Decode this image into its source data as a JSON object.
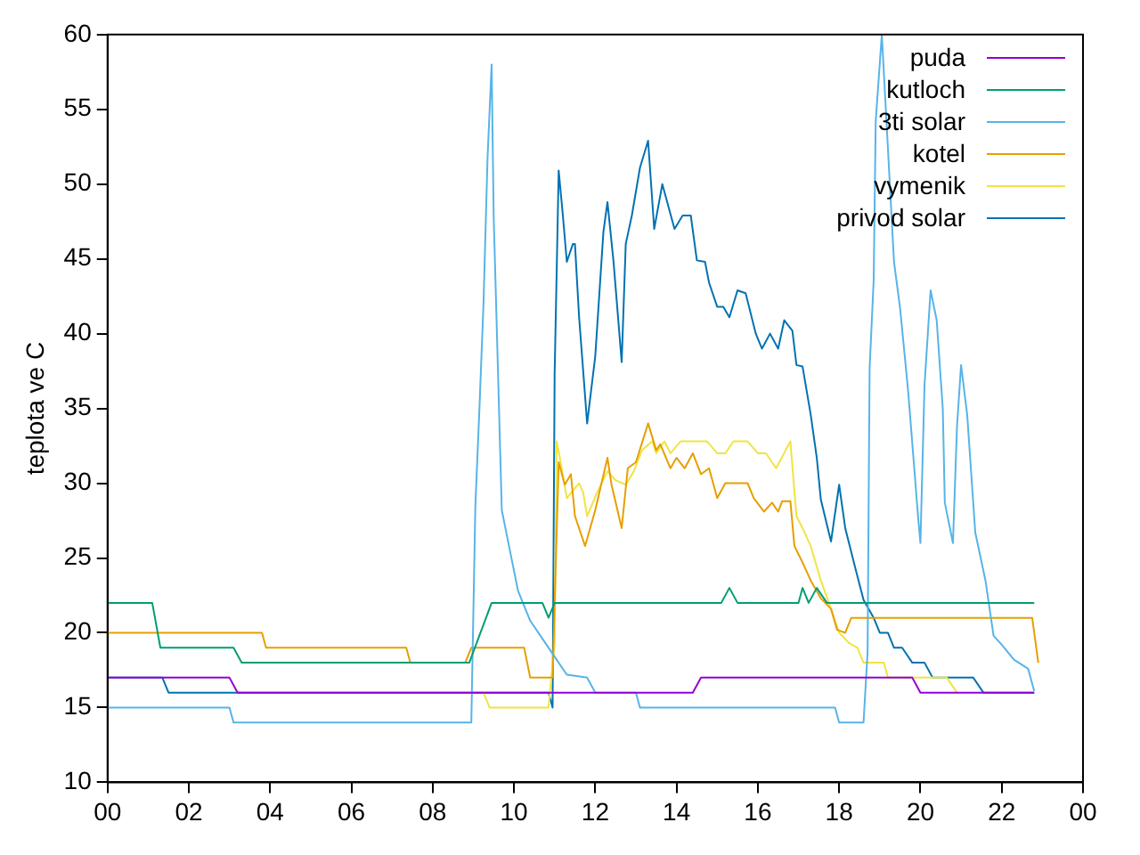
{
  "chart_data": {
    "type": "line",
    "ylabel": "teplota ve C",
    "xlim": [
      0,
      24
    ],
    "ylim": [
      10,
      60
    ],
    "xticks": [
      {
        "value": 0,
        "label": "00"
      },
      {
        "value": 2,
        "label": "02"
      },
      {
        "value": 4,
        "label": "04"
      },
      {
        "value": 6,
        "label": "06"
      },
      {
        "value": 8,
        "label": "08"
      },
      {
        "value": 10,
        "label": "10"
      },
      {
        "value": 12,
        "label": "12"
      },
      {
        "value": 14,
        "label": "14"
      },
      {
        "value": 16,
        "label": "16"
      },
      {
        "value": 18,
        "label": "18"
      },
      {
        "value": 20,
        "label": "20"
      },
      {
        "value": 22,
        "label": "22"
      },
      {
        "value": 24,
        "label": "00"
      }
    ],
    "yticks": [
      10,
      15,
      20,
      25,
      30,
      35,
      40,
      45,
      50,
      55,
      60
    ],
    "grid": false,
    "legend": "top right",
    "marker": "none",
    "line_style": "solid",
    "series": [
      {
        "name": "puda",
        "color": "#9400d3",
        "x": [
          0,
          3.0,
          3.2,
          11.0,
          14.4,
          14.6,
          19.8,
          20.0,
          22.8
        ],
        "values": [
          17,
          17,
          16,
          16,
          16,
          17,
          17,
          16,
          16
        ]
      },
      {
        "name": "kutloch",
        "color": "#009e73",
        "x": [
          0,
          1.1,
          1.3,
          3.1,
          3.3,
          8.9,
          9.45,
          10.7,
          10.85,
          11.0,
          15.1,
          15.3,
          15.5,
          17.0,
          17.1,
          17.25,
          17.45,
          17.7,
          22.8
        ],
        "values": [
          22,
          22,
          19,
          19,
          18,
          18,
          22,
          22,
          21,
          22,
          22,
          23,
          22,
          22,
          23,
          22,
          23,
          22,
          22
        ]
      },
      {
        "name": "3ti solar",
        "color": "#56b4e9",
        "x": [
          0,
          3.0,
          3.1,
          8.95,
          9.05,
          9.15,
          9.25,
          9.35,
          9.45,
          9.5,
          9.6,
          9.7,
          9.9,
          10.1,
          10.4,
          10.8,
          11.0,
          11.3,
          11.8,
          12.0,
          13.0,
          13.1,
          17.9,
          18.0,
          18.6,
          18.7,
          18.75,
          18.85,
          18.9,
          19.05,
          19.35,
          19.5,
          19.7,
          19.95,
          20.0,
          20.1,
          20.25,
          20.4,
          20.55,
          20.6,
          20.8,
          20.9,
          21.0,
          21.15,
          21.35,
          21.6,
          21.8,
          22.0,
          22.3,
          22.65,
          22.8
        ],
        "values": [
          15,
          15,
          14,
          14,
          28.5,
          35,
          42,
          51.8,
          58,
          47.9,
          38.1,
          28.2,
          25.5,
          22.8,
          20.8,
          19.2,
          18.4,
          17.2,
          17,
          16,
          16,
          15,
          15,
          14,
          14,
          18.7,
          37.7,
          43.6,
          54.2,
          60,
          44.8,
          41.7,
          36.1,
          27.5,
          26,
          36.5,
          42.9,
          40.9,
          35,
          28.7,
          26,
          33.8,
          37.9,
          34.6,
          26.7,
          23.5,
          19.8,
          19.2,
          18.2,
          17.6,
          16.1
        ]
      },
      {
        "name": "kotel",
        "color": "#e69f00",
        "x": [
          0,
          3.8,
          3.9,
          7.35,
          7.45,
          8.8,
          8.95,
          10.25,
          10.4,
          10.95,
          11.05,
          11.1,
          11.25,
          11.4,
          11.5,
          11.75,
          12.0,
          12.3,
          12.4,
          12.65,
          12.8,
          13.0,
          13.3,
          13.5,
          13.6,
          13.85,
          14.0,
          14.2,
          14.4,
          14.6,
          14.8,
          15.0,
          15.2,
          15.75,
          15.9,
          16.15,
          16.35,
          16.5,
          16.6,
          16.8,
          16.9,
          17.1,
          17.3,
          17.55,
          17.8,
          17.95,
          18.15,
          18.3,
          22.75,
          22.9
        ],
        "values": [
          20,
          20,
          19,
          19,
          18,
          18,
          19,
          19,
          17,
          17,
          26.7,
          31.4,
          29.9,
          30.6,
          27.8,
          25.8,
          28.2,
          31.7,
          29.9,
          27,
          31,
          31.4,
          34,
          32.2,
          32.6,
          31,
          31.7,
          31,
          32,
          30.6,
          31,
          29,
          30,
          30,
          29,
          28.1,
          28.7,
          28.1,
          28.8,
          28.8,
          25.8,
          24.7,
          23.5,
          22.3,
          21.6,
          20.2,
          20,
          21,
          21,
          18
        ]
      },
      {
        "name": "vymenik",
        "color": "#f0e442",
        "x": [
          9.25,
          9.4,
          10.85,
          11.0,
          11.05,
          11.15,
          11.3,
          11.6,
          11.7,
          11.8,
          12.05,
          12.3,
          12.5,
          12.75,
          12.95,
          13.15,
          13.4,
          13.5,
          13.7,
          13.85,
          14.1,
          14.75,
          15.0,
          15.2,
          15.4,
          15.75,
          16.0,
          16.2,
          16.45,
          16.8,
          16.95,
          17.1,
          17.3,
          17.55,
          17.8,
          18.0,
          18.25,
          18.45,
          18.6,
          19.1,
          19.2,
          20.65,
          20.9
        ],
        "values": [
          16,
          15,
          15,
          19.3,
          32.8,
          31.4,
          29,
          30,
          29.4,
          27.8,
          29.4,
          30.8,
          30.2,
          29.9,
          30.8,
          32.2,
          32.8,
          32,
          32.8,
          32,
          32.8,
          32.8,
          32,
          32,
          32.8,
          32.8,
          32,
          32,
          31,
          32.8,
          27.8,
          27,
          25.8,
          23.5,
          21.6,
          20,
          19.3,
          19,
          18,
          18,
          17,
          17,
          16
        ]
      },
      {
        "name": "privod solar",
        "color": "#0072b2",
        "x": [
          0,
          1.35,
          1.5,
          10.85,
          10.95,
          11.0,
          11.1,
          11.2,
          11.3,
          11.45,
          11.5,
          11.6,
          11.8,
          12.0,
          12.2,
          12.3,
          12.45,
          12.65,
          12.75,
          12.9,
          13.1,
          13.3,
          13.45,
          13.65,
          13.95,
          14.15,
          14.35,
          14.5,
          14.7,
          14.8,
          15.0,
          15.15,
          15.3,
          15.5,
          15.7,
          15.95,
          16.1,
          16.3,
          16.5,
          16.65,
          16.85,
          16.95,
          17.1,
          17.3,
          17.45,
          17.55,
          17.8,
          18.0,
          18.15,
          18.4,
          18.6,
          18.85,
          19.0,
          19.2,
          19.35,
          19.55,
          19.8,
          20.1,
          20.3,
          21.3,
          21.55,
          22.8
        ],
        "values": [
          17,
          17,
          16,
          16,
          15,
          37.3,
          50.9,
          48,
          44.8,
          46,
          46,
          41.2,
          34,
          38.5,
          46.8,
          48.8,
          44.8,
          38.1,
          46,
          47.9,
          51.1,
          52.9,
          47,
          50,
          47,
          47.9,
          47.9,
          44.9,
          44.8,
          43.4,
          41.8,
          41.8,
          41.1,
          42.9,
          42.7,
          40,
          39,
          40,
          39,
          40.9,
          40.2,
          37.9,
          37.8,
          34.6,
          31.7,
          28.9,
          26.1,
          29.9,
          27,
          24.3,
          22.2,
          21,
          20,
          20,
          19,
          19,
          18,
          18,
          17,
          17,
          16,
          16
        ]
      }
    ]
  }
}
